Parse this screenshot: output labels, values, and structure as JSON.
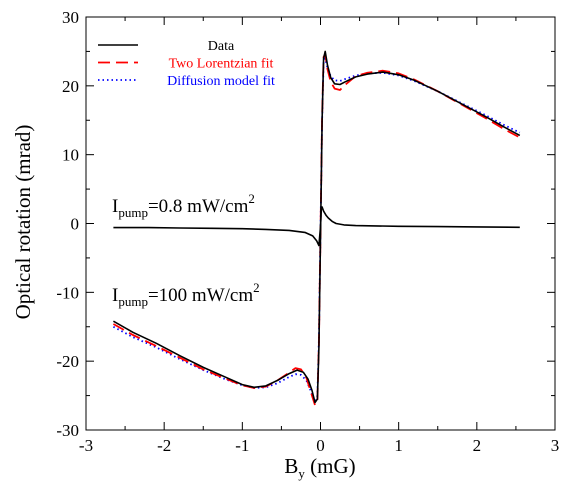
{
  "chart_data": {
    "type": "line",
    "xlabel_main": "B",
    "xlabel_sub": "y",
    "xlabel_unit": " (mG)",
    "ylabel": "Optical rotation (mrad)",
    "xlim": [
      -3,
      3
    ],
    "ylim": [
      -30,
      30
    ],
    "x_ticks": [
      -3,
      -2,
      -1,
      0,
      1,
      2,
      3
    ],
    "y_ticks": [
      -30,
      -20,
      -10,
      0,
      10,
      20,
      30
    ],
    "grid": false,
    "legend_position": "top-left",
    "legend": [
      {
        "label": "Data",
        "color": "#000000",
        "style": "solid"
      },
      {
        "label": "Two Lorentzian fit",
        "color": "#ff0000",
        "style": "dashed"
      },
      {
        "label": "Diffusion model fit",
        "color": "#0000ff",
        "style": "dotted"
      }
    ],
    "annotations": [
      {
        "main": "I",
        "sub": "pump",
        "value": "=0.8 mW/cm",
        "sup": "2"
      },
      {
        "main": "I",
        "sub": "pump",
        "value": "=100 mW/cm",
        "sup": "2"
      }
    ],
    "series": [
      {
        "name": "Data",
        "group": "high-power",
        "color": "#000000",
        "style": "solid",
        "x": [
          -2.65,
          -2.4,
          -2.1,
          -1.8,
          -1.5,
          -1.2,
          -1.0,
          -0.85,
          -0.7,
          -0.55,
          -0.4,
          -0.3,
          -0.22,
          -0.16,
          -0.11,
          -0.07,
          -0.04,
          -0.02,
          0.0,
          0.02,
          0.04,
          0.06,
          0.09,
          0.13,
          0.18,
          0.25,
          0.32,
          0.45,
          0.6,
          0.8,
          1.0,
          1.2,
          1.5,
          1.8,
          2.1,
          2.35,
          2.55
        ],
        "y": [
          -14.2,
          -15.8,
          -17.4,
          -19.2,
          -20.9,
          -22.4,
          -23.4,
          -23.8,
          -23.6,
          -22.8,
          -21.8,
          -21.3,
          -21.6,
          -22.6,
          -24.2,
          -26.0,
          -25.5,
          -18.0,
          -2.0,
          15.0,
          24.0,
          25.0,
          23.0,
          21.2,
          20.3,
          20.2,
          20.6,
          21.3,
          21.7,
          22.0,
          21.6,
          20.8,
          19.2,
          17.4,
          15.6,
          14.0,
          12.8
        ]
      },
      {
        "name": "Two Lorentzian fit",
        "group": "high-power",
        "color": "#ff0000",
        "style": "dashed",
        "x": [
          -2.65,
          -2.4,
          -2.1,
          -1.8,
          -1.5,
          -1.2,
          -1.0,
          -0.85,
          -0.7,
          -0.55,
          -0.42,
          -0.32,
          -0.25,
          -0.18,
          -0.12,
          -0.07,
          -0.04,
          -0.02,
          0.0,
          0.02,
          0.04,
          0.06,
          0.09,
          0.13,
          0.18,
          0.25,
          0.32,
          0.45,
          0.6,
          0.8,
          1.0,
          1.2,
          1.5,
          1.8,
          2.1,
          2.35,
          2.55
        ],
        "y": [
          -14.6,
          -16.2,
          -17.8,
          -19.5,
          -21.2,
          -22.6,
          -23.5,
          -23.9,
          -23.7,
          -22.8,
          -21.8,
          -21.0,
          -21.2,
          -22.4,
          -24.6,
          -26.4,
          -25.8,
          -17.5,
          -1.5,
          15.5,
          24.2,
          24.6,
          22.4,
          20.6,
          19.6,
          19.4,
          20.2,
          21.4,
          21.9,
          22.2,
          21.8,
          20.9,
          19.2,
          17.3,
          15.4,
          13.7,
          12.5
        ]
      },
      {
        "name": "Diffusion model fit",
        "group": "high-power",
        "color": "#0000ff",
        "style": "dotted",
        "x": [
          -2.65,
          -2.4,
          -2.1,
          -1.8,
          -1.5,
          -1.2,
          -1.0,
          -0.85,
          -0.7,
          -0.55,
          -0.42,
          -0.32,
          -0.25,
          -0.18,
          -0.12,
          -0.07,
          -0.04,
          -0.02,
          0.0,
          0.02,
          0.04,
          0.06,
          0.09,
          0.13,
          0.18,
          0.25,
          0.32,
          0.45,
          0.6,
          0.8,
          1.0,
          1.2,
          1.5,
          1.8,
          2.1,
          2.35,
          2.55
        ],
        "y": [
          -15.0,
          -16.5,
          -18.0,
          -19.7,
          -21.3,
          -22.7,
          -23.5,
          -23.9,
          -23.8,
          -23.2,
          -22.4,
          -21.9,
          -22.0,
          -22.8,
          -24.4,
          -25.8,
          -25.0,
          -17.0,
          -1.0,
          15.0,
          23.5,
          24.0,
          22.6,
          21.4,
          20.8,
          20.7,
          21.0,
          21.5,
          21.8,
          21.9,
          21.5,
          20.7,
          19.2,
          17.5,
          15.8,
          14.3,
          13.2
        ]
      },
      {
        "name": "Data",
        "group": "low-power",
        "color": "#000000",
        "style": "solid",
        "x": [
          -2.65,
          -2.2,
          -1.8,
          -1.4,
          -1.0,
          -0.7,
          -0.4,
          -0.2,
          -0.1,
          -0.05,
          -0.02,
          0.0,
          0.01,
          0.02,
          0.04,
          0.07,
          0.1,
          0.15,
          0.2,
          0.3,
          0.45,
          0.7,
          1.0,
          1.5,
          2.0,
          2.55
        ],
        "y": [
          -0.6,
          -0.6,
          -0.65,
          -0.7,
          -0.75,
          -0.85,
          -1.0,
          -1.3,
          -1.8,
          -2.5,
          -3.2,
          -0.5,
          2.0,
          2.4,
          1.8,
          1.2,
          0.8,
          0.3,
          0.0,
          -0.2,
          -0.3,
          -0.35,
          -0.4,
          -0.45,
          -0.5,
          -0.55
        ]
      }
    ]
  }
}
